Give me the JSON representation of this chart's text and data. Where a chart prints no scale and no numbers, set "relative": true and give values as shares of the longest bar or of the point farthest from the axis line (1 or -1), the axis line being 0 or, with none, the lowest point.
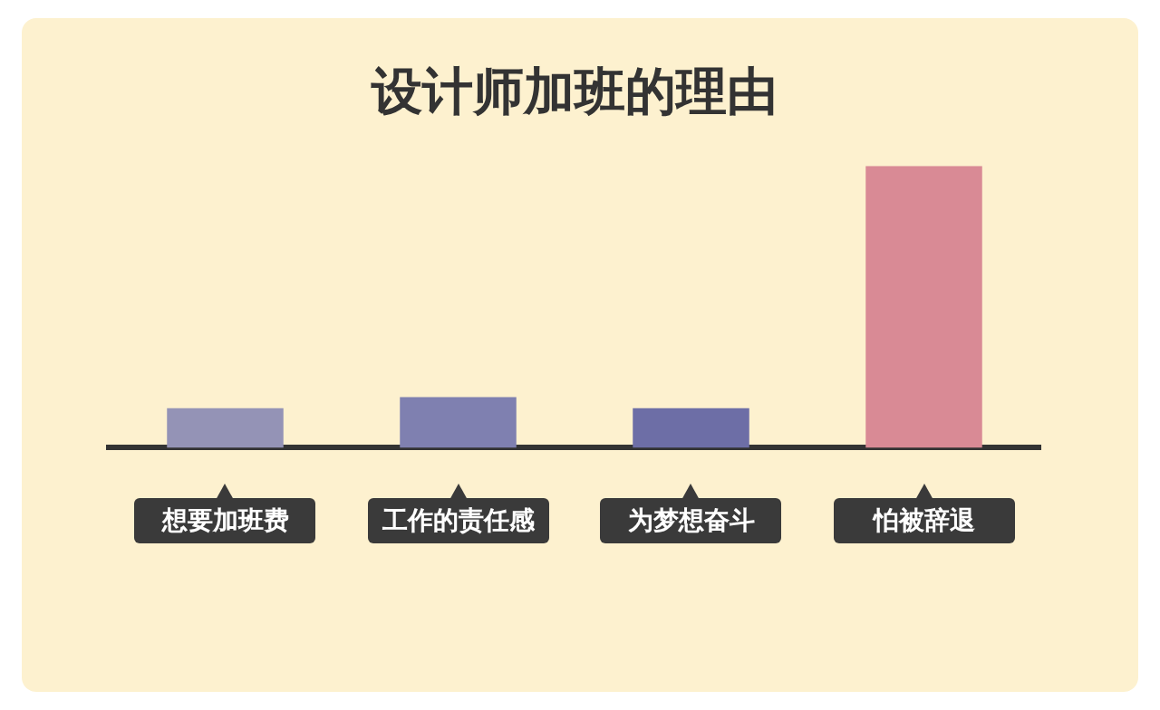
{
  "chart_data": {
    "type": "bar",
    "title": "设计师加班的理由",
    "relative": true,
    "categories": [
      "想要加班费",
      "工作的责任感",
      "为梦想奋斗",
      "怕被辞退"
    ],
    "values": [
      0.14,
      0.18,
      0.14,
      1
    ],
    "colors": [
      "#9493b6",
      "#7f80b0",
      "#6d6ea6",
      "#d98a95"
    ],
    "grid": false,
    "legend": false
  }
}
